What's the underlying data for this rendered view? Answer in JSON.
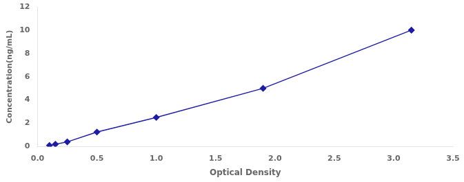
{
  "chart_data": {
    "type": "line",
    "x": [
      0.1,
      0.15,
      0.25,
      0.5,
      1.0,
      1.9,
      3.15
    ],
    "values": [
      0.1,
      0.2,
      0.4,
      1.25,
      2.5,
      5.0,
      10.0
    ],
    "color": "#1c1ca8",
    "marker": "diamond",
    "line_style": "solid",
    "xlabel": "Optical Density",
    "ylabel": "Concentration(ng/mL)",
    "xlim": [
      0,
      3.5
    ],
    "ylim": [
      0,
      12
    ],
    "xticks": [
      {
        "value": 0,
        "label": "0.0"
      },
      0.5,
      {
        "value": 1,
        "label": "1.0"
      },
      1.5,
      {
        "value": 2,
        "label": "2.0"
      },
      2.5,
      {
        "value": 3,
        "label": "3.0"
      },
      3.5
    ],
    "yticks": [
      0,
      2,
      4,
      6,
      8,
      10,
      12
    ],
    "grid": false
  }
}
